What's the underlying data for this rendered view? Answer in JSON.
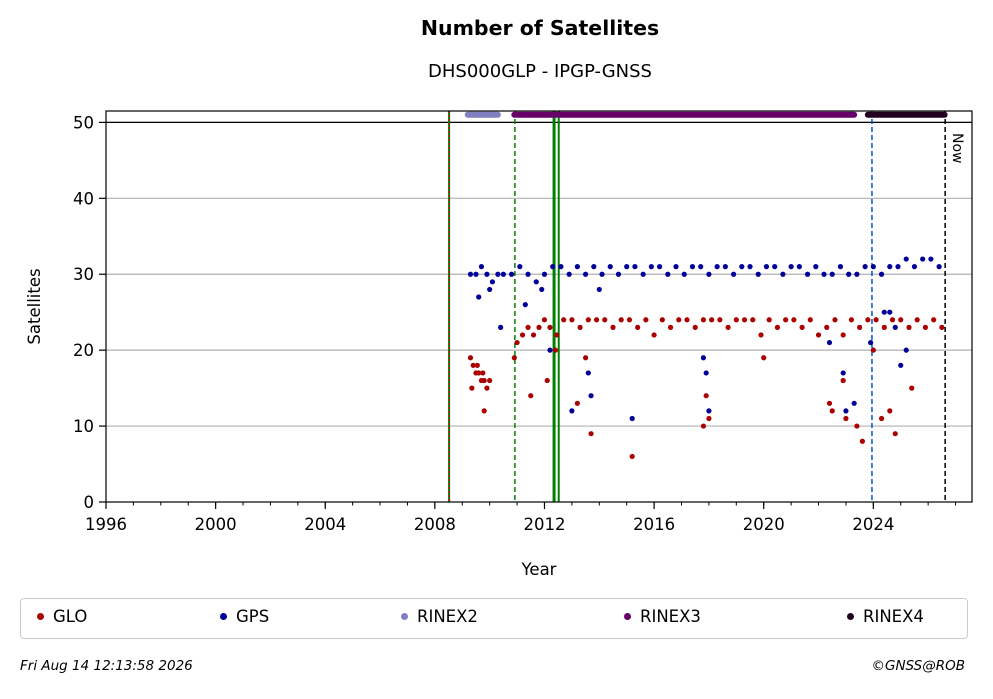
{
  "chart_data": {
    "type": "scatter",
    "title": "Number of Satellites",
    "subtitle": "DHS000GLP - IPGP-GNSS",
    "xlabel": "Year",
    "ylabel": "Satellites",
    "xlim": [
      1996,
      2027.6
    ],
    "ylim": [
      0,
      51.5
    ],
    "xticks": [
      1996,
      2000,
      2004,
      2008,
      2012,
      2016,
      2020,
      2024
    ],
    "yticks": [
      0,
      10,
      20,
      30,
      40,
      50
    ],
    "grid": "horizontal",
    "legend_placement": "bottom",
    "now_label": "Now",
    "now_x": 2026.62,
    "colors": {
      "GLO": "#aa0000",
      "GPS": "#000099",
      "RINEX2": "#8080c0",
      "RINEX3": "#660066",
      "RINEX4": "#220022"
    },
    "vlines": [
      {
        "x": 2008.52,
        "color": "#008000",
        "style": "solid",
        "width": 2
      },
      {
        "x": 2008.52,
        "color": "#cc0000",
        "style": "dotted",
        "width": 1.5
      },
      {
        "x": 2010.92,
        "color": "#008000",
        "style": "dashed",
        "width": 1.5
      },
      {
        "x": 2012.35,
        "color": "#008000",
        "style": "solid",
        "width": 3
      },
      {
        "x": 2012.52,
        "color": "#008000",
        "style": "solid",
        "width": 2
      },
      {
        "x": 2023.95,
        "color": "#0055cc",
        "style": "dashed",
        "width": 1.5
      },
      {
        "x": 2026.62,
        "color": "#000000",
        "style": "dashed",
        "width": 1.5
      }
    ],
    "series": [
      {
        "name": "GLO",
        "x": [
          2009.3,
          2009.4,
          2009.5,
          2009.6,
          2009.7,
          2009.8,
          2009.9,
          2010.0,
          2009.35,
          2009.55,
          2009.75,
          2011.0,
          2011.2,
          2011.4,
          2011.6,
          2011.8,
          2012.0,
          2012.2,
          2012.45,
          2012.7,
          2013.0,
          2013.3,
          2013.6,
          2013.9,
          2014.2,
          2014.5,
          2014.8,
          2015.1,
          2015.4,
          2015.7,
          2016.0,
          2016.3,
          2016.6,
          2016.9,
          2017.2,
          2017.5,
          2017.8,
          2018.1,
          2018.4,
          2018.7,
          2019.0,
          2019.3,
          2019.6,
          2019.9,
          2020.2,
          2020.5,
          2020.8,
          2021.1,
          2021.4,
          2021.7,
          2022.0,
          2022.3,
          2022.6,
          2022.9,
          2023.2,
          2023.5,
          2023.8,
          2024.1,
          2024.4,
          2024.7,
          2025.0,
          2025.3,
          2025.6,
          2025.9,
          2026.2,
          2026.5,
          2009.8,
          2010.9,
          2011.5,
          2012.1,
          2012.4,
          2013.2,
          2013.5,
          2013.7,
          2015.2,
          2017.8,
          2017.9,
          2018.0,
          2020.0,
          2022.4,
          2022.5,
          2022.9,
          2023.0,
          2023.4,
          2023.6,
          2024.0,
          2024.3,
          2024.6,
          2024.8,
          2025.4
        ],
        "y": [
          19,
          18,
          17,
          17,
          16,
          16,
          15,
          16,
          15,
          18,
          17,
          21,
          22,
          23,
          22,
          23,
          24,
          23,
          22,
          24,
          24,
          23,
          24,
          24,
          24,
          23,
          24,
          24,
          23,
          24,
          22,
          24,
          23,
          24,
          24,
          23,
          24,
          24,
          24,
          23,
          24,
          24,
          24,
          22,
          24,
          23,
          24,
          24,
          23,
          24,
          22,
          23,
          24,
          22,
          24,
          23,
          24,
          24,
          23,
          24,
          24,
          23,
          24,
          23,
          24,
          23,
          12,
          19,
          14,
          16,
          20,
          13,
          19,
          9,
          6,
          10,
          14,
          11,
          19,
          13,
          12,
          16,
          11,
          10,
          8,
          20,
          11,
          12,
          9,
          15
        ]
      },
      {
        "name": "GPS",
        "x": [
          2009.3,
          2009.5,
          2009.7,
          2009.9,
          2010.1,
          2010.3,
          2010.5,
          2010.8,
          2011.1,
          2011.4,
          2011.7,
          2012.0,
          2012.3,
          2012.6,
          2012.9,
          2013.2,
          2013.5,
          2013.8,
          2014.1,
          2014.4,
          2014.7,
          2015.0,
          2015.3,
          2015.6,
          2015.9,
          2016.2,
          2016.5,
          2016.8,
          2017.1,
          2017.4,
          2017.7,
          2018.0,
          2018.3,
          2018.6,
          2018.9,
          2019.2,
          2019.5,
          2019.8,
          2020.1,
          2020.4,
          2020.7,
          2021.0,
          2021.3,
          2021.6,
          2021.9,
          2022.2,
          2022.5,
          2022.8,
          2023.1,
          2023.4,
          2023.7,
          2024.0,
          2024.3,
          2024.6,
          2024.9,
          2025.2,
          2025.5,
          2025.8,
          2026.1,
          2026.4,
          2009.6,
          2010.0,
          2010.4,
          2011.3,
          2011.9,
          2012.2,
          2013.0,
          2013.6,
          2013.7,
          2014.0,
          2015.2,
          2017.8,
          2017.9,
          2018.0,
          2022.4,
          2022.9,
          2023.0,
          2023.3,
          2023.9,
          2024.4,
          2024.6,
          2024.8,
          2025.0,
          2025.2
        ],
        "y": [
          30,
          30,
          31,
          30,
          29,
          30,
          30,
          30,
          31,
          30,
          29,
          30,
          31,
          31,
          30,
          31,
          30,
          31,
          30,
          31,
          30,
          31,
          31,
          30,
          31,
          31,
          30,
          31,
          30,
          31,
          31,
          30,
          31,
          31,
          30,
          31,
          31,
          30,
          31,
          31,
          30,
          31,
          31,
          30,
          31,
          30,
          30,
          31,
          30,
          30,
          31,
          31,
          30,
          31,
          31,
          32,
          31,
          32,
          32,
          31,
          27,
          28,
          23,
          26,
          28,
          20,
          12,
          17,
          14,
          28,
          11,
          19,
          17,
          12,
          21,
          17,
          12,
          13,
          21,
          25,
          25,
          23,
          18,
          20
        ]
      },
      {
        "name": "RINEX2",
        "x": [
          2009.2,
          2010.3
        ],
        "y": [
          51,
          51
        ]
      },
      {
        "name": "RINEX3",
        "x": [
          2010.9,
          2023.3
        ],
        "y": [
          51,
          51
        ]
      },
      {
        "name": "RINEX4",
        "x": [
          2023.8,
          2026.6
        ],
        "y": [
          51,
          51
        ]
      }
    ]
  },
  "legend": {
    "items": [
      {
        "label": "GLO",
        "color": "#aa0000"
      },
      {
        "label": "GPS",
        "color": "#000099"
      },
      {
        "label": "RINEX2",
        "color": "#8080c0"
      },
      {
        "label": "RINEX3",
        "color": "#660066"
      },
      {
        "label": "RINEX4",
        "color": "#220022"
      }
    ]
  },
  "footer": {
    "timestamp": "Fri Aug 14 12:13:58 2026",
    "credit": "©GNSS@ROB"
  }
}
